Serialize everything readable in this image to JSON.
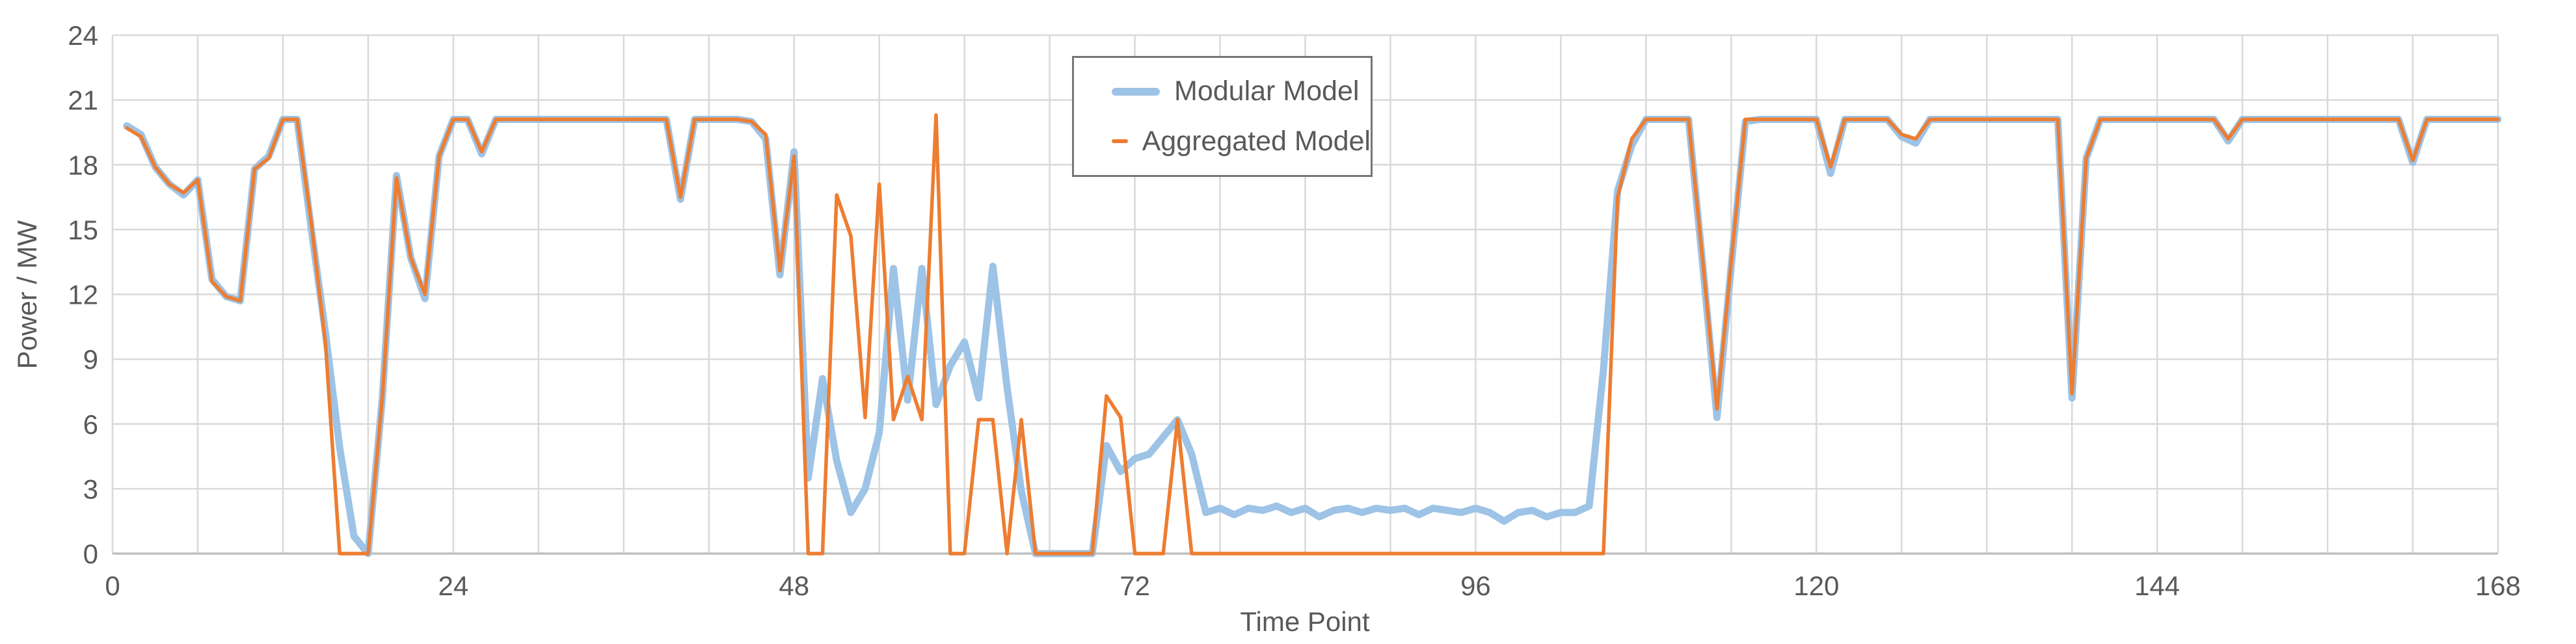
{
  "chart_data": {
    "type": "line",
    "title": "",
    "xlabel": "Time Point",
    "ylabel": "Power / MW",
    "xlim": [
      0,
      168
    ],
    "ylim": [
      0,
      24
    ],
    "x_ticks": [
      0,
      24,
      48,
      72,
      96,
      120,
      144,
      168
    ],
    "y_ticks": [
      0,
      3,
      6,
      9,
      12,
      15,
      18,
      21,
      24
    ],
    "x_grid_step": 6,
    "grid_on": true,
    "legend_position": "top-center-inside",
    "x_start": 1,
    "series": [
      {
        "name": "Modular Model",
        "color": "#9DC3E6",
        "stroke_width": 11,
        "values": [
          19.8,
          19.4,
          17.9,
          17.1,
          16.6,
          17.3,
          12.7,
          11.9,
          11.7,
          17.8,
          18.4,
          20.1,
          20.1,
          15.0,
          10.2,
          4.9,
          0.8,
          0,
          7.2,
          17.5,
          13.7,
          11.8,
          18.4,
          20.1,
          20.1,
          18.5,
          20.1,
          20.1,
          20.1,
          20.1,
          20.1,
          20.1,
          20.1,
          20.1,
          20.1,
          20.1,
          20.1,
          20.1,
          20.1,
          16.4,
          20.1,
          20.1,
          20.1,
          20.1,
          20.0,
          19.2,
          12.9,
          18.6,
          3.5,
          8.1,
          4.3,
          1.9,
          3.0,
          5.6,
          13.2,
          7.1,
          13.2,
          6.9,
          8.7,
          9.8,
          7.2,
          13.3,
          7.7,
          2.9,
          0,
          0,
          0,
          0,
          0,
          5.0,
          3.8,
          4.4,
          4.6,
          5.4,
          6.2,
          4.6,
          1.9,
          2.1,
          1.8,
          2.1,
          2.0,
          2.2,
          1.9,
          2.1,
          1.7,
          2.0,
          2.1,
          1.9,
          2.1,
          2.0,
          2.1,
          1.8,
          2.1,
          2.0,
          1.9,
          2.1,
          1.9,
          1.5,
          1.9,
          2.0,
          1.7,
          1.9,
          1.9,
          2.2,
          8.5,
          16.8,
          18.9,
          20.1,
          20.1,
          20.1,
          20.1,
          13.3,
          6.3,
          13.3,
          20.0,
          20.1,
          20.1,
          20.1,
          20.1,
          20.1,
          17.6,
          20.1,
          20.1,
          20.1,
          20.1,
          19.3,
          19.0,
          20.1,
          20.1,
          20.1,
          20.1,
          20.1,
          20.1,
          20.1,
          20.1,
          20.1,
          20.1,
          7.2,
          18.3,
          20.1,
          20.1,
          20.1,
          20.1,
          20.1,
          20.1,
          20.1,
          20.1,
          20.1,
          19.1,
          20.1,
          20.1,
          20.1,
          20.1,
          20.1,
          20.1,
          20.1,
          20.1,
          20.1,
          20.1,
          20.1,
          20.1,
          18.1,
          20.1,
          20.1,
          20.1,
          20.1,
          20.1,
          20.1
        ]
      },
      {
        "name": "Aggregated Model",
        "color": "#ED7D31",
        "stroke_width": 5.5,
        "values": [
          19.7,
          19.3,
          17.9,
          17.1,
          16.7,
          17.3,
          12.6,
          11.9,
          11.7,
          17.8,
          18.3,
          20.1,
          20.1,
          15.3,
          9.7,
          0,
          0,
          0,
          7.2,
          17.4,
          13.7,
          12.0,
          18.4,
          20.1,
          20.1,
          18.6,
          20.1,
          20.1,
          20.1,
          20.1,
          20.1,
          20.1,
          20.1,
          20.1,
          20.1,
          20.1,
          20.1,
          20.1,
          20.1,
          16.5,
          20.1,
          20.1,
          20.1,
          20.1,
          20.0,
          19.4,
          13.1,
          18.4,
          0,
          0,
          16.6,
          14.7,
          6.3,
          17.1,
          6.2,
          8.2,
          6.2,
          20.3,
          0,
          0,
          6.2,
          6.2,
          0,
          6.2,
          0,
          0,
          0,
          0,
          0,
          7.3,
          6.3,
          0,
          0,
          0,
          6.2,
          0,
          0,
          0,
          0,
          0,
          0,
          0,
          0,
          0,
          0,
          0,
          0,
          0,
          0,
          0,
          0,
          0,
          0,
          0,
          0,
          0,
          0,
          0,
          0,
          0,
          0,
          0,
          0,
          0,
          0,
          16.5,
          19.2,
          20.1,
          20.1,
          20.1,
          20.1,
          13.5,
          6.7,
          13.5,
          20.1,
          20.1,
          20.1,
          20.1,
          20.1,
          20.1,
          17.9,
          20.1,
          20.1,
          20.1,
          20.1,
          19.4,
          19.2,
          20.1,
          20.1,
          20.1,
          20.1,
          20.1,
          20.1,
          20.1,
          20.1,
          20.1,
          20.1,
          7.4,
          18.3,
          20.1,
          20.1,
          20.1,
          20.1,
          20.1,
          20.1,
          20.1,
          20.1,
          20.1,
          19.2,
          20.1,
          20.1,
          20.1,
          20.1,
          20.1,
          20.1,
          20.1,
          20.1,
          20.1,
          20.1,
          20.1,
          20.1,
          18.2,
          20.1,
          20.1,
          20.1,
          20.1,
          20.1,
          20.1
        ]
      }
    ]
  },
  "legend": {
    "items": [
      {
        "label": "Modular Model",
        "color": "#9DC3E6"
      },
      {
        "label": "Aggregated Model",
        "color": "#ED7D31"
      }
    ]
  },
  "colors": {
    "gridline": "#D9D9D9",
    "axis_line": "#BFBFBF",
    "text": "#595959",
    "legend_border": "#767676",
    "background": "#FFFFFF"
  }
}
